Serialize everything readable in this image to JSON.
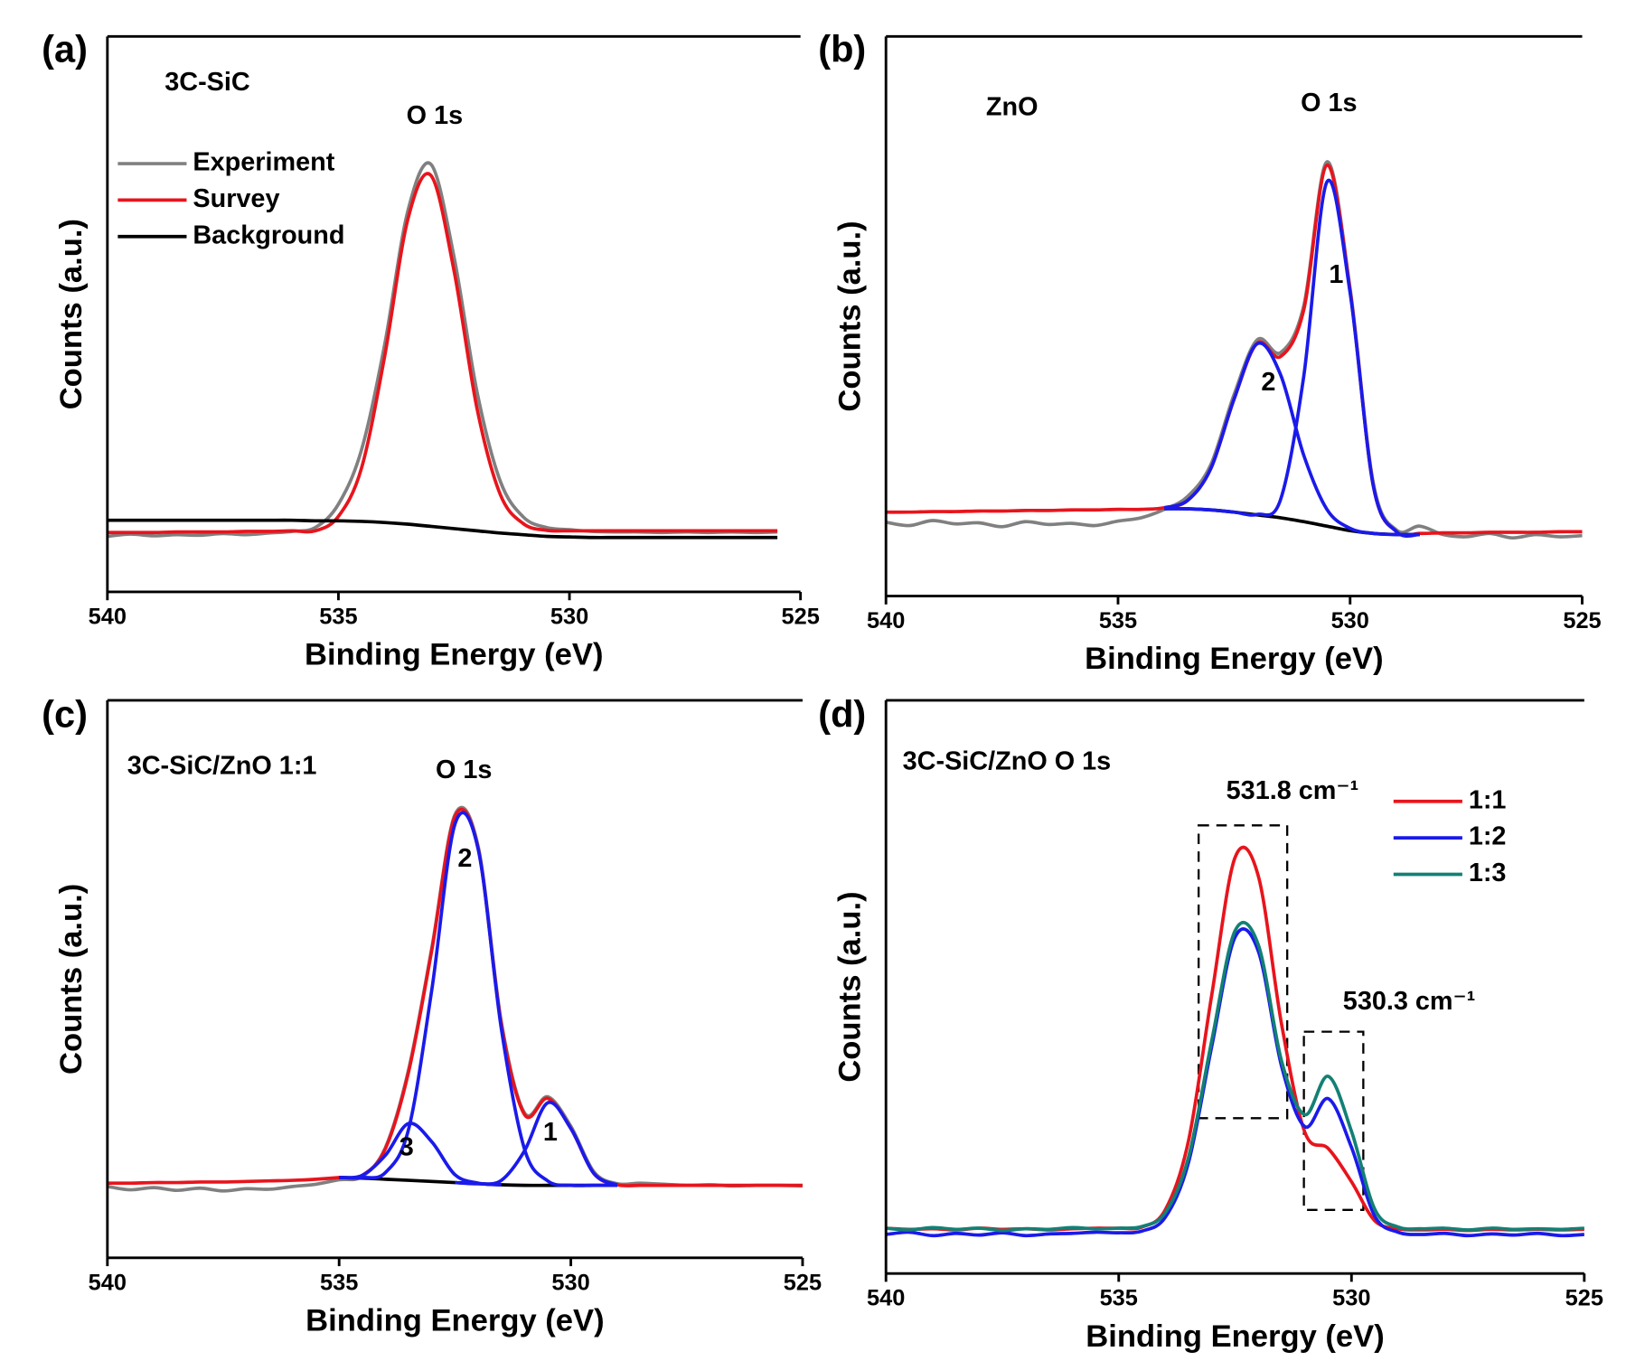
{
  "chart_data": [
    {
      "type": "line",
      "panel_label": "(a)",
      "xlabel": "Binding Energy (eV)",
      "ylabel": "Counts (a.u.)",
      "xlim": [
        540,
        525
      ],
      "xticks": [
        540,
        535,
        530,
        525
      ],
      "ylim": [
        0,
        100
      ],
      "legend": "upper left",
      "annotations": [
        "3C-SiC",
        "O 1s"
      ],
      "x": [
        540,
        539.5,
        539,
        538.5,
        538,
        537.5,
        537,
        536.5,
        536,
        535.5,
        535,
        534.5,
        534,
        533.5,
        533,
        532.5,
        532,
        531.5,
        531,
        530.5,
        530,
        529.5,
        529,
        528.5,
        528,
        527.5,
        527,
        526.5,
        526,
        525.5,
        525
      ],
      "series": [
        {
          "name": "Experiment",
          "color": "#808080",
          "values": [
            10.0,
            10.4,
            10.1,
            10.3,
            10.2,
            10.5,
            10.3,
            10.6,
            10.9,
            11.6,
            15.8,
            25.6,
            44.5,
            68.5,
            77.0,
            60.4,
            36.0,
            20.0,
            13.5,
            11.6,
            11.2,
            10.9,
            10.8,
            10.8,
            10.7,
            10.8,
            10.7,
            10.8,
            10.7,
            10.8,
            null
          ]
        },
        {
          "name": "Survey",
          "color": "#e8141c",
          "values": [
            10.7,
            10.7,
            10.7,
            10.8,
            10.8,
            10.8,
            10.9,
            10.9,
            11.0,
            11.0,
            13.6,
            22.3,
            42.4,
            67.0,
            75.0,
            57.9,
            33.0,
            17.6,
            12.3,
            11.1,
            11.0,
            11.0,
            11.0,
            11.0,
            11.0,
            11.0,
            11.0,
            11.0,
            11.0,
            11.0,
            null
          ]
        },
        {
          "name": "Background",
          "color": "#000000",
          "values": [
            12.9,
            12.9,
            12.9,
            12.9,
            12.9,
            12.9,
            12.9,
            12.9,
            12.9,
            12.8,
            12.8,
            12.7,
            12.5,
            12.2,
            11.8,
            11.4,
            11.0,
            10.6,
            10.3,
            10.0,
            9.9,
            9.8,
            9.8,
            9.8,
            9.8,
            9.8,
            9.8,
            9.8,
            9.8,
            9.8,
            null
          ]
        }
      ]
    },
    {
      "type": "line",
      "panel_label": "(b)",
      "xlabel": "Binding Energy (eV)",
      "ylabel": "Counts (a.u.)",
      "xlim": [
        540,
        525
      ],
      "xticks": [
        540,
        535,
        530,
        525
      ],
      "ylim": [
        0,
        100
      ],
      "annotations": [
        "ZnO",
        "O 1s",
        "1",
        "2"
      ],
      "x": [
        540,
        539.5,
        539,
        538.5,
        538,
        537.5,
        537,
        536.5,
        536,
        535.5,
        535,
        534.5,
        534,
        533.5,
        533,
        532.5,
        532,
        531.5,
        531,
        530.5,
        530,
        529.5,
        529,
        528.5,
        528,
        527.5,
        527,
        526.5,
        526,
        525.5,
        525
      ],
      "series": [
        {
          "color": "#808080",
          "values": [
            13.2,
            12.6,
            13.5,
            12.9,
            13.1,
            12.4,
            13.3,
            12.8,
            13.0,
            12.6,
            13.4,
            14.0,
            15.5,
            17.8,
            23.5,
            36.0,
            45.8,
            43.5,
            51.8,
            77.6,
            55.0,
            20.2,
            11.8,
            12.5,
            11.0,
            10.6,
            11.2,
            10.4,
            11.0,
            10.6,
            10.8
          ]
        },
        {
          "color": "#e8141c",
          "values": [
            15.0,
            15.0,
            15.1,
            15.1,
            15.2,
            15.2,
            15.3,
            15.3,
            15.4,
            15.4,
            15.5,
            15.5,
            15.8,
            17.1,
            22.8,
            35.2,
            45.2,
            42.8,
            51.1,
            77.0,
            54.6,
            19.7,
            11.5,
            11.2,
            11.3,
            11.3,
            11.4,
            11.4,
            11.4,
            11.5,
            11.5
          ]
        },
        {
          "color": "#000000",
          "values": [
            null,
            null,
            null,
            null,
            null,
            null,
            null,
            null,
            null,
            null,
            null,
            null,
            15.6,
            15.6,
            15.4,
            15.0,
            14.5,
            14.0,
            13.3,
            12.5,
            11.7,
            11.2,
            11.0,
            11.0,
            null,
            null,
            null,
            null,
            null,
            null,
            null
          ]
        },
        {
          "color": "#1a1aeb",
          "values": [
            null,
            null,
            null,
            null,
            null,
            null,
            null,
            null,
            null,
            null,
            null,
            null,
            15.6,
            15.6,
            15.4,
            15.0,
            14.6,
            17.2,
            39.2,
            74.0,
            54.2,
            19.7,
            11.5,
            11.0,
            null,
            null,
            null,
            null,
            null,
            null,
            null
          ]
        },
        {
          "color": "#1a1aeb",
          "values": [
            null,
            null,
            null,
            null,
            null,
            null,
            null,
            null,
            null,
            null,
            null,
            null,
            15.8,
            17.1,
            22.8,
            35.2,
            45.1,
            39.6,
            25.2,
            15.5,
            12.1,
            11.2,
            11.0,
            11.0,
            null,
            null,
            null,
            null,
            null,
            null,
            null
          ]
        }
      ]
    },
    {
      "type": "line",
      "panel_label": "(c)",
      "xlabel": "Binding Energy (eV)",
      "ylabel": "Counts (a.u.)",
      "xlim": [
        540,
        525
      ],
      "xticks": [
        540,
        535,
        530,
        525
      ],
      "ylim": [
        0,
        100
      ],
      "annotations": [
        "3C-SiC/ZnO 1:1",
        "O 1s",
        "2",
        "3",
        "1"
      ],
      "x": [
        540,
        539.5,
        539,
        538.5,
        538,
        537.5,
        537,
        536.5,
        536,
        535.5,
        535,
        534.5,
        534,
        533.5,
        533,
        532.5,
        532,
        531.5,
        531,
        530.5,
        530,
        529.5,
        529,
        528.5,
        528,
        527.5,
        527,
        526.5,
        526,
        525.5,
        525
      ],
      "series": [
        {
          "color": "#808080",
          "values": [
            12.8,
            12.2,
            12.6,
            12.1,
            12.5,
            12.0,
            12.4,
            12.3,
            12.8,
            13.2,
            14.0,
            14.6,
            19.8,
            33.8,
            55.6,
            79.5,
            73.8,
            42.3,
            26.0,
            28.9,
            23.6,
            15.4,
            13.3,
            13.4,
            13.2,
            13.0,
            13.1,
            12.9,
            13.0,
            13.0,
            12.9
          ]
        },
        {
          "color": "#e8141c",
          "values": [
            13.4,
            13.4,
            13.5,
            13.5,
            13.6,
            13.6,
            13.7,
            13.8,
            13.9,
            14.1,
            14.4,
            14.8,
            19.6,
            33.4,
            55.2,
            79.2,
            73.4,
            41.9,
            25.7,
            28.6,
            23.2,
            15.1,
            13.1,
            13.0,
            13.0,
            13.0,
            13.0,
            13.0,
            13.0,
            13.0,
            13.0
          ]
        },
        {
          "color": "#000000",
          "values": [
            null,
            null,
            null,
            null,
            null,
            null,
            null,
            null,
            null,
            null,
            14.4,
            14.3,
            14.1,
            13.9,
            13.7,
            13.5,
            13.3,
            13.1,
            13.0,
            13.0,
            13.0,
            13.0,
            13.0,
            null,
            null,
            null,
            null,
            null,
            null,
            null,
            null
          ]
        },
        {
          "color": "#1a1aeb",
          "values": [
            null,
            null,
            null,
            null,
            null,
            null,
            null,
            null,
            null,
            null,
            14.4,
            14.4,
            15.3,
            23.1,
            48.1,
            77.8,
            73.3,
            41.1,
            19.5,
            13.8,
            13.0,
            13.0,
            13.0,
            null,
            null,
            null,
            null,
            null,
            null,
            null,
            null
          ]
        },
        {
          "color": "#1a1aeb",
          "values": [
            null,
            null,
            null,
            null,
            null,
            null,
            null,
            null,
            null,
            null,
            14.4,
            14.8,
            18.4,
            24.1,
            20.8,
            14.9,
            13.4,
            13.1,
            null,
            null,
            null,
            null,
            null,
            null,
            null,
            null,
            null,
            null,
            null,
            null,
            null
          ]
        },
        {
          "color": "#1a1aeb",
          "values": [
            null,
            null,
            null,
            null,
            null,
            null,
            null,
            null,
            null,
            null,
            null,
            null,
            null,
            null,
            null,
            13.5,
            13.3,
            13.9,
            19.2,
            27.8,
            23.2,
            15.1,
            13.1,
            null,
            null,
            null,
            null,
            null,
            null,
            null,
            null
          ]
        }
      ]
    },
    {
      "type": "line",
      "panel_label": "(d)",
      "xlabel": "Binding Energy (eV)",
      "ylabel": "Counts (a.u.)",
      "xlim": [
        540,
        525
      ],
      "xticks": [
        540,
        535,
        530,
        525
      ],
      "ylim": [
        0,
        100
      ],
      "legend": "upper right",
      "annotations": [
        "3C-SiC/ZnO  O 1s",
        "531.8 cm⁻¹",
        "530.3 cm⁻¹"
      ],
      "x": [
        540,
        539.5,
        539,
        538.5,
        538,
        537.5,
        537,
        536.5,
        536,
        535.5,
        535,
        534.5,
        534,
        533.5,
        533,
        532.5,
        532,
        531.5,
        531,
        530.5,
        530,
        529.5,
        529,
        528.5,
        528,
        527.5,
        527,
        526.5,
        526,
        525.5,
        525
      ],
      "series": [
        {
          "name": "1:1",
          "color": "#e8141c",
          "values": [
            7.9,
            7.7,
            7.8,
            7.6,
            7.9,
            7.7,
            7.8,
            7.6,
            7.8,
            7.9,
            7.9,
            8.1,
            11.1,
            23.2,
            48.7,
            72.6,
            69.3,
            43.4,
            24.6,
            21.8,
            16.0,
            9.2,
            7.8,
            7.6,
            7.7,
            7.5,
            7.7,
            7.6,
            7.7,
            7.6,
            7.7
          ]
        },
        {
          "name": "1:2",
          "color": "#1a1aeb",
          "values": [
            6.8,
            7.2,
            6.6,
            7.0,
            6.7,
            7.1,
            6.6,
            6.9,
            7.0,
            7.2,
            7.1,
            7.4,
            9.8,
            19.4,
            39.7,
            58.7,
            56.2,
            36.1,
            25.6,
            30.5,
            22.0,
            10.0,
            7.2,
            6.8,
            7.0,
            6.6,
            6.9,
            6.7,
            7.0,
            6.6,
            6.8
          ]
        },
        {
          "name": "1:3",
          "color": "#138074",
          "values": [
            7.9,
            7.6,
            8.0,
            7.7,
            7.9,
            7.5,
            7.8,
            7.7,
            8.0,
            7.8,
            7.9,
            8.2,
            10.6,
            20.3,
            40.7,
            59.8,
            57.3,
            37.0,
            27.7,
            34.4,
            24.8,
            11.2,
            8.1,
            7.8,
            7.9,
            7.6,
            7.9,
            7.7,
            7.8,
            7.7,
            7.9
          ]
        }
      ]
    }
  ]
}
